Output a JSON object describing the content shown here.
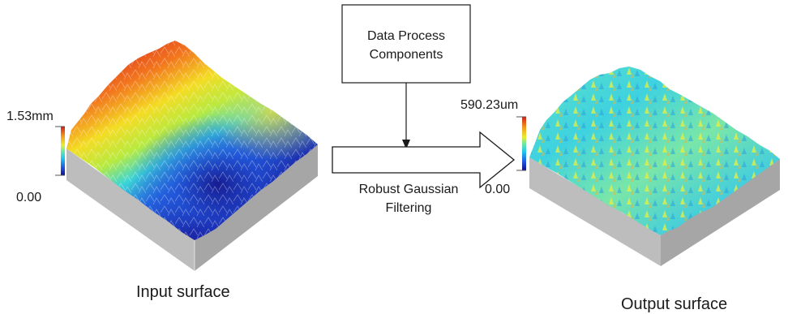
{
  "process_box": {
    "line1": "Data Process",
    "line2": "Components"
  },
  "arrow_label": {
    "line1": "Robust Gaussian",
    "line2": "Filtering"
  },
  "input_surface": {
    "caption": "Input surface",
    "scale_max": "1.53mm",
    "scale_min": "0.00"
  },
  "output_surface": {
    "caption": "Output surface",
    "scale_max": "590.23um",
    "scale_min": "0.00"
  },
  "colors": {
    "colormap": [
      "#1a1aa6",
      "#2f6fe0",
      "#22c4e8",
      "#5fe0b0",
      "#c8ec3a",
      "#f4e020",
      "#f59a1c",
      "#e53a1c",
      "#c8201c"
    ],
    "block_side_left": "#bdbdbd",
    "block_side_right": "#a9a9a9",
    "arrow_stroke": "#1a1a1a"
  }
}
